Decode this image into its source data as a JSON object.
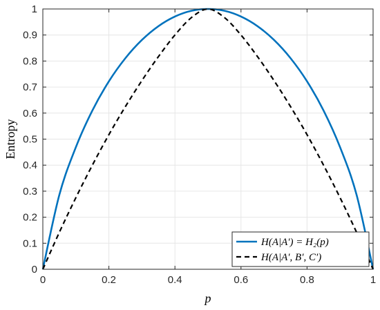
{
  "chart_data": {
    "type": "line",
    "title": "",
    "xlabel": "p",
    "ylabel": "Entropy",
    "xlim": [
      0,
      1
    ],
    "ylim": [
      0,
      1
    ],
    "xticks": [
      "0",
      "0.2",
      "0.4",
      "0.6",
      "0.8",
      "1"
    ],
    "yticks": [
      "0",
      "0.1",
      "0.2",
      "0.3",
      "0.4",
      "0.5",
      "0.6",
      "0.7",
      "0.8",
      "0.9",
      "1"
    ],
    "grid": true,
    "legend_position": "bottom-right",
    "x": [
      0,
      0.05,
      0.1,
      0.15,
      0.2,
      0.25,
      0.3,
      0.35,
      0.4,
      0.45,
      0.5,
      0.55,
      0.6,
      0.65,
      0.7,
      0.75,
      0.8,
      0.85,
      0.9,
      0.95,
      1
    ],
    "series": [
      {
        "name": "H(A|A′) = H₂(p)",
        "style": "solid",
        "color": "#0072BD",
        "values": [
          0,
          0.286,
          0.469,
          0.61,
          0.722,
          0.811,
          0.881,
          0.934,
          0.971,
          0.993,
          1.0,
          0.993,
          0.971,
          0.934,
          0.881,
          0.811,
          0.722,
          0.61,
          0.469,
          0.286,
          0
        ]
      },
      {
        "name": "H(A|A′, B′, C′)",
        "style": "dashed",
        "color": "#000000",
        "values": [
          0,
          0.142,
          0.275,
          0.4,
          0.517,
          0.625,
          0.725,
          0.817,
          0.9,
          0.967,
          1.0,
          0.967,
          0.9,
          0.817,
          0.725,
          0.625,
          0.517,
          0.4,
          0.275,
          0.142,
          0
        ]
      }
    ]
  }
}
